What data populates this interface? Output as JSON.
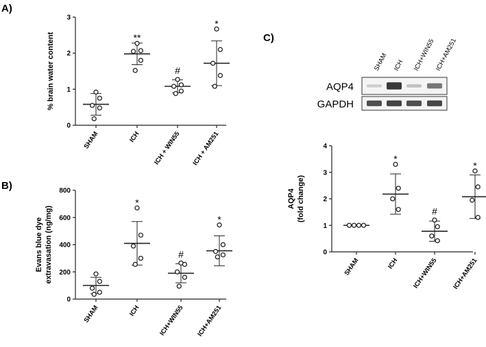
{
  "panels": [
    {
      "label": "A)"
    },
    {
      "label": "B)"
    },
    {
      "label": "C)"
    }
  ],
  "chart_data": [
    {
      "type": "scatter",
      "panel": "A)",
      "ylabel": "% brain water content",
      "ylim": [
        0,
        3
      ],
      "yticks": [
        "0",
        "1",
        "2",
        "3"
      ],
      "categories": [
        "SHAM",
        "ICH",
        "ICH + WIN55",
        "ICH + AM251"
      ],
      "points": [
        [
          0.92,
          0.75,
          0.55,
          0.48,
          0.18
        ],
        [
          2.27,
          2.07,
          2.05,
          1.8,
          1.52
        ],
        [
          1.27,
          1.12,
          1.08,
          0.95,
          0.88
        ],
        [
          2.67,
          2.1,
          1.72,
          1.38,
          1.08
        ]
      ],
      "mean": [
        0.58,
        1.98,
        1.08,
        1.72
      ],
      "sd": [
        0.3,
        0.3,
        0.18,
        0.62
      ],
      "significance": [
        "",
        "**",
        "#",
        "*"
      ]
    },
    {
      "type": "scatter",
      "panel": "B)",
      "ylabel_lines": [
        "Evans blue dye",
        "extravasation (ng/mg)"
      ],
      "ylim": [
        0,
        800
      ],
      "yticks": [
        "0",
        "200",
        "400",
        "600",
        "800"
      ],
      "categories": [
        "SHAM",
        "ICH",
        "ICH+WIN55",
        "ICH+AM251"
      ],
      "points": [
        [
          185,
          130,
          80,
          50,
          35
        ],
        [
          670,
          470,
          390,
          300,
          255
        ],
        [
          265,
          255,
          200,
          160,
          95
        ],
        [
          545,
          400,
          350,
          325,
          310
        ]
      ],
      "mean": [
        100,
        410,
        190,
        355
      ],
      "sd": [
        60,
        160,
        70,
        110
      ],
      "significance": [
        "",
        "*",
        "#",
        "*"
      ]
    },
    {
      "type": "scatter",
      "panel": "C)",
      "ylabel_lines": [
        "AQP4",
        "(fold change)"
      ],
      "ylim": [
        0,
        4
      ],
      "yticks": [
        "0",
        "1",
        "2",
        "3",
        "4"
      ],
      "categories": [
        "SHAM",
        "ICH",
        "ICH+WIN55",
        "ICH+AM251"
      ],
      "points": [
        [
          1.0,
          1.0,
          1.0,
          1.0
        ],
        [
          3.3,
          2.4,
          2.0,
          1.6
        ],
        [
          1.2,
          0.95,
          0.6,
          0.42
        ],
        [
          3.05,
          2.45,
          1.95,
          1.3
        ]
      ],
      "mean": [
        1.0,
        2.18,
        0.78,
        2.08
      ],
      "sd": [
        0.0,
        0.76,
        0.38,
        0.82
      ],
      "significance": [
        "",
        "*",
        "#",
        "*"
      ]
    }
  ],
  "blot": {
    "lanes": [
      "SHAM",
      "ICH",
      "ICH+WIN55",
      "ICH+AM251"
    ],
    "rows": [
      {
        "label": "AQP4",
        "band_intensity": [
          0.15,
          0.85,
          0.2,
          0.55
        ]
      },
      {
        "label": "GAPDH",
        "band_intensity": [
          0.75,
          0.8,
          0.75,
          0.78
        ]
      }
    ]
  }
}
